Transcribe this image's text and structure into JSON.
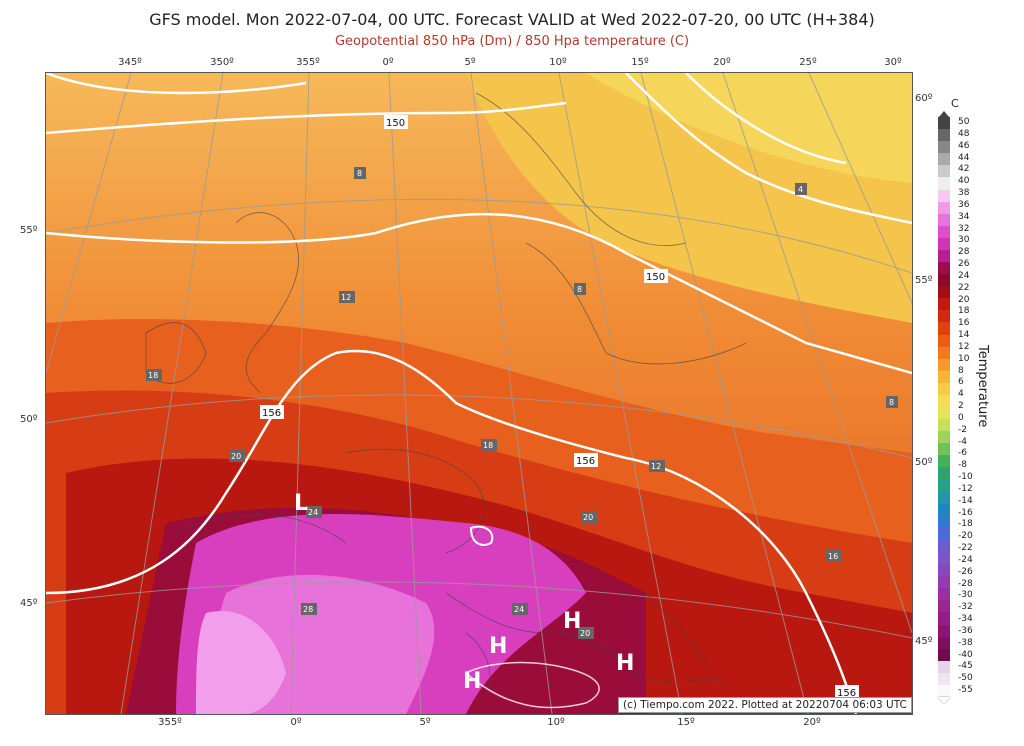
{
  "header": {
    "title": "GFS model. Mon 2022-07-04, 00 UTC. Forecast VALID at Wed 2022-07-20, 00 UTC (H+384)",
    "subtitle": "Geopotential 850 hPa (Dm) / 850 Hpa temperature (C)"
  },
  "map_labels": {
    "top_lon": [
      "345º",
      "350º",
      "355º",
      "0º",
      "5º",
      "10º",
      "15º",
      "20º",
      "25º",
      "30º"
    ],
    "bottom_lon": [
      "355º",
      "0º",
      "5º",
      "10º",
      "15º",
      "20º"
    ],
    "left_lat": [
      "55º",
      "50º",
      "45º"
    ],
    "right_lat": [
      "60º",
      "55º",
      "50º",
      "45º"
    ]
  },
  "geopotential_labels": [
    "150",
    "150",
    "156",
    "156",
    "156"
  ],
  "temperature_labels": [
    "8",
    "12",
    "18",
    "20",
    "24",
    "28",
    "20",
    "24",
    "20",
    "16",
    "12",
    "8",
    "4",
    "8",
    "18"
  ],
  "pressure_systems": [
    "L",
    "H",
    "H",
    "H",
    "H"
  ],
  "credit": "(c) Tiempo.com 2022. Plotted at 20220704 06:03 UTC",
  "colorbar": {
    "unit": "C",
    "title": "Temperature",
    "ticks": [
      "50",
      "48",
      "46",
      "44",
      "42",
      "40",
      "38",
      "36",
      "34",
      "32",
      "30",
      "28",
      "26",
      "24",
      "22",
      "20",
      "18",
      "16",
      "14",
      "12",
      "10",
      "8",
      "6",
      "4",
      "2",
      "0",
      "-2",
      "-4",
      "-6",
      "-8",
      "-10",
      "-12",
      "-14",
      "-16",
      "-18",
      "-20",
      "-22",
      "-24",
      "-26",
      "-28",
      "-30",
      "-32",
      "-34",
      "-36",
      "-38",
      "-40",
      "-45",
      "-50",
      "-55"
    ],
    "colors": [
      "#444444",
      "#666666",
      "#888888",
      "#aaaaaa",
      "#cccccc",
      "#eeeeee",
      "#f7c9f2",
      "#f19be8",
      "#e872dc",
      "#dd4fcd",
      "#cf35b8",
      "#b81f8c",
      "#9c0c4f",
      "#8a0a2a",
      "#a50d15",
      "#c01912",
      "#d4290e",
      "#e2410e",
      "#ec5c12",
      "#f27a1b",
      "#f49a28",
      "#f5b536",
      "#f6cb45",
      "#f5dc52",
      "#e6e45b",
      "#c7e05c",
      "#9fd35a",
      "#70c259",
      "#47b15a",
      "#2fa56b",
      "#24a08c",
      "#2096a8",
      "#2086c1",
      "#3478d2",
      "#4d6ad6",
      "#6860d2",
      "#7c55c9",
      "#8949bd",
      "#923db0",
      "#9830a2",
      "#9a2694",
      "#981c85",
      "#8f1474",
      "#7f0f60",
      "#6c0c4d",
      "#e8d3ec",
      "#f2e4f4",
      "#fafafa"
    ]
  }
}
